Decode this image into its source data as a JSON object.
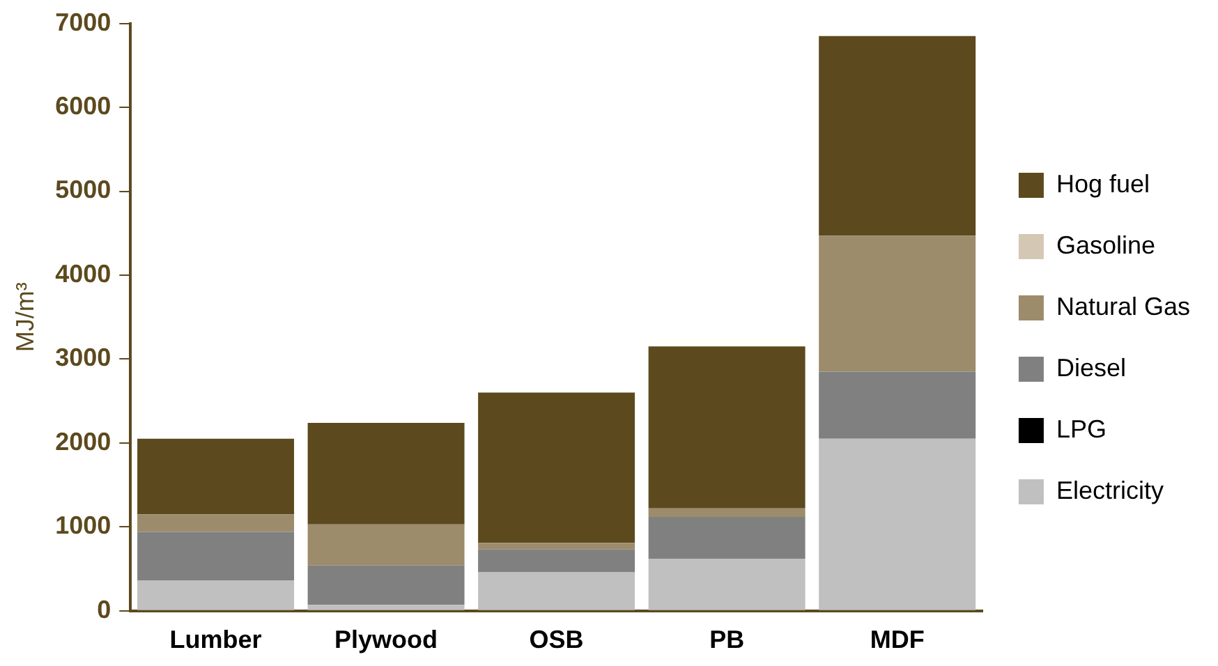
{
  "chart_data": {
    "type": "bar",
    "stacked": true,
    "ylabel": "MJ/m³",
    "categories": [
      "Lumber",
      "Plywood",
      "OSB",
      "PB",
      "MDF"
    ],
    "series": [
      {
        "name": "Electricity",
        "color": "#c0c0c0",
        "values": [
          360,
          70,
          460,
          620,
          2050
        ]
      },
      {
        "name": "LPG",
        "color": "#000000",
        "values": [
          0,
          0,
          0,
          0,
          0
        ]
      },
      {
        "name": "Diesel",
        "color": "#808080",
        "values": [
          580,
          470,
          270,
          500,
          800
        ]
      },
      {
        "name": "Natural Gas",
        "color": "#9c8c6c",
        "values": [
          210,
          490,
          80,
          100,
          1620
        ]
      },
      {
        "name": "Gasoline",
        "color": "#d4c8b4",
        "values": [
          0,
          0,
          0,
          0,
          0
        ]
      },
      {
        "name": "Hog fuel",
        "color": "#5c4a1e",
        "values": [
          900,
          1210,
          1790,
          1930,
          2380
        ]
      }
    ],
    "ylim": [
      0,
      7000
    ],
    "yticks": [
      0,
      1000,
      2000,
      3000,
      4000,
      5000,
      6000,
      7000
    ],
    "grid": false,
    "legend": "right"
  }
}
